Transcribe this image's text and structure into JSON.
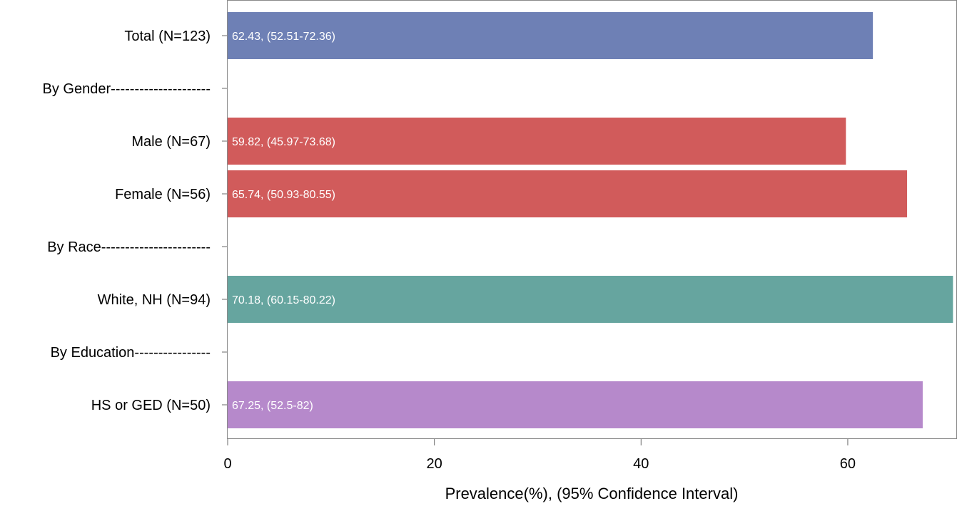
{
  "chart_data": {
    "type": "bar",
    "orientation": "horizontal",
    "title": "",
    "xlabel": "Prevalence(%), (95% Confidence Interval)",
    "ylabel": "",
    "xlim": [
      0,
      70.5
    ],
    "xticks": [
      0,
      20,
      40,
      60
    ],
    "grid": false,
    "categories": [
      "Total (N=123)",
      "By Gender---------------------",
      "Male (N=67)",
      "Female (N=56)",
      "By Race-----------------------",
      "White, NH (N=94)",
      "By Education----------------",
      "HS or GED (N=50)"
    ],
    "values": [
      62.43,
      null,
      59.82,
      65.74,
      null,
      70.18,
      null,
      67.25
    ],
    "bar_labels": [
      "62.43, (52.51-72.36)",
      "",
      "59.82, (45.97-73.68)",
      "65.74, (50.93-80.55)",
      "",
      "70.18, (60.15-80.22)",
      "",
      "67.25, (52.5-82)"
    ],
    "colors": [
      "#6e80b5",
      null,
      "#d15b5b",
      "#d15b5b",
      null,
      "#66a59f",
      null,
      "#b689cb"
    ]
  }
}
